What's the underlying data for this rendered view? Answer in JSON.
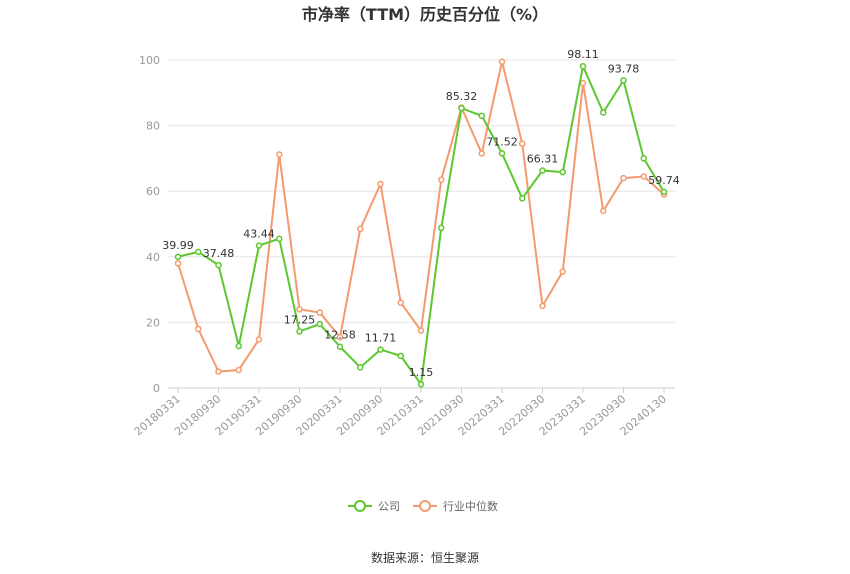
{
  "chart_data": {
    "type": "line",
    "title": "市净率（TTM）历史百分位（%）",
    "source": "数据来源：恒生聚源",
    "xlabel": "",
    "ylabel": "",
    "ylim": [
      0,
      100
    ],
    "yticks": [
      "0",
      "20",
      "40",
      "60",
      "80",
      "100"
    ],
    "grid": true,
    "legend_position": "bottom",
    "x_tick_labels": [
      "20180331",
      "20180930",
      "20190331",
      "20190930",
      "20200331",
      "20200930",
      "20210331",
      "20210930",
      "20220331",
      "20220930",
      "20230331",
      "20230930",
      "20240130"
    ],
    "series": [
      {
        "name": "公司",
        "color": "#5cc72e",
        "values": [
          39.99,
          41.5,
          37.48,
          12.8,
          43.44,
          45.5,
          17.25,
          19.5,
          12.58,
          6.3,
          11.71,
          9.8,
          1.15,
          48.8,
          85.32,
          83.0,
          71.52,
          57.8,
          66.31,
          65.8,
          98.11,
          84.0,
          93.78,
          70.0,
          59.74
        ],
        "labels": [
          "39.99",
          "",
          "37.48",
          "",
          "43.44",
          "",
          "17.25",
          "",
          "12.58",
          "",
          "11.71",
          "",
          "1.15",
          "",
          "85.32",
          "",
          "71.52",
          "",
          "66.31",
          "",
          "98.11",
          "",
          "93.78",
          "",
          "59.74"
        ]
      },
      {
        "name": "行业中位数",
        "color": "#f59a6e",
        "values": [
          38.0,
          18.0,
          5.0,
          5.5,
          14.8,
          71.2,
          24.0,
          23.0,
          15.5,
          48.5,
          62.2,
          26.0,
          17.5,
          63.5,
          85.5,
          71.5,
          99.5,
          74.5,
          25.0,
          35.5,
          93.0,
          54.0,
          64.0,
          64.5,
          59.0
        ]
      }
    ]
  }
}
